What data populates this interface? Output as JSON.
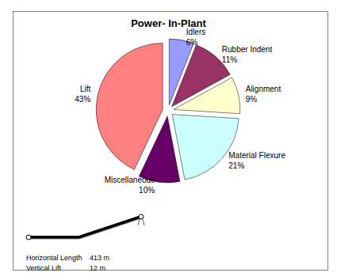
{
  "chart_data": {
    "type": "pie",
    "title": "Power- In-Plant",
    "categories": [
      "Idlers",
      "Rubber Indent",
      "Alignment",
      "Material Flexure",
      "Miscellaneous",
      "Lift"
    ],
    "values": [
      6,
      11,
      9,
      21,
      10,
      43
    ],
    "value_labels": [
      "6%",
      "11%",
      "9%",
      "21%",
      "10%",
      "43%"
    ],
    "colors": [
      "#9999ff",
      "#993366",
      "#ffffcc",
      "#ccffff",
      "#660066",
      "#ff8080"
    ],
    "data_labels": true,
    "annotations": [
      {
        "label": "Horizontal Length",
        "text": "413 m"
      },
      {
        "label": "Vertical Lift",
        "text": "12 m"
      }
    ]
  }
}
